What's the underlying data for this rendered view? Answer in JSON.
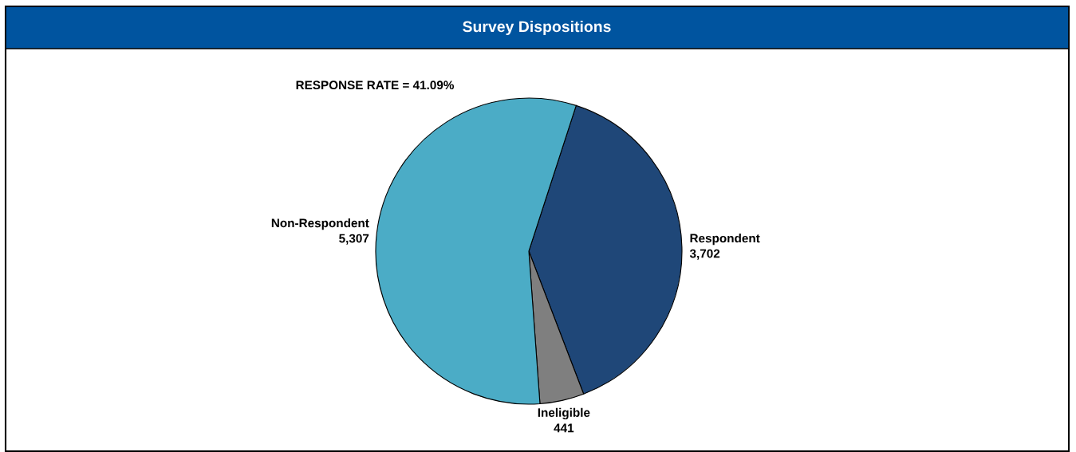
{
  "chart_data": {
    "type": "pie",
    "title": "Survey Dispositions",
    "categories": [
      "Respondent",
      "Ineligible",
      "Non-Respondent"
    ],
    "values": [
      3702,
      441,
      5307
    ],
    "value_labels": [
      "3,702",
      "441",
      "5,307"
    ],
    "colors": [
      "#1f4778",
      "#7f7f7f",
      "#4bacc6"
    ],
    "annotations": [
      "RESPONSE RATE = 41.09%"
    ]
  }
}
